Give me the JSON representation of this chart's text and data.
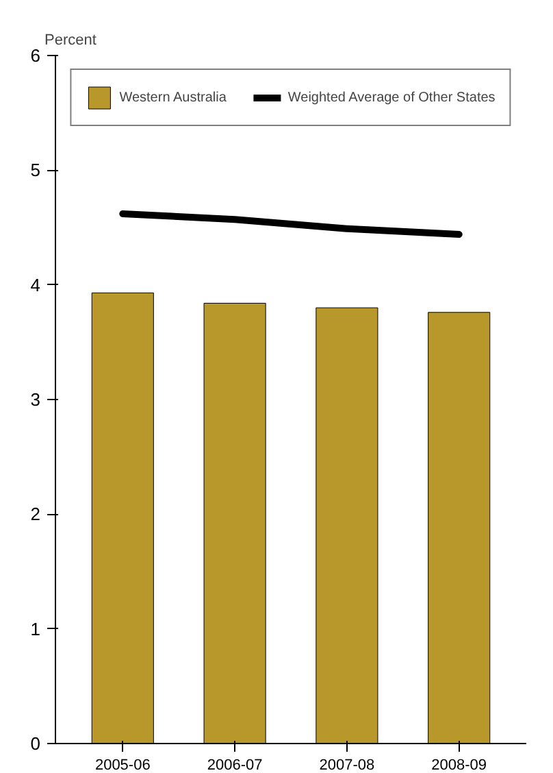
{
  "chart_data": {
    "type": "bar",
    "ylabel": "Percent",
    "categories": [
      "2005-06",
      "2006-07",
      "2007-08",
      "2008-09"
    ],
    "series": [
      {
        "name": "Western Australia",
        "color": "#b8982a",
        "values": [
          3.93,
          3.84,
          3.8,
          3.76
        ]
      },
      {
        "name": "Weighted Average of Other States",
        "type": "line",
        "color": "#000000",
        "values": [
          4.62,
          4.57,
          4.49,
          4.44
        ]
      }
    ],
    "ylim": [
      0,
      6
    ],
    "yticks": [
      0,
      1,
      2,
      3,
      4,
      5,
      6
    ],
    "grid": false,
    "legend": "top"
  }
}
